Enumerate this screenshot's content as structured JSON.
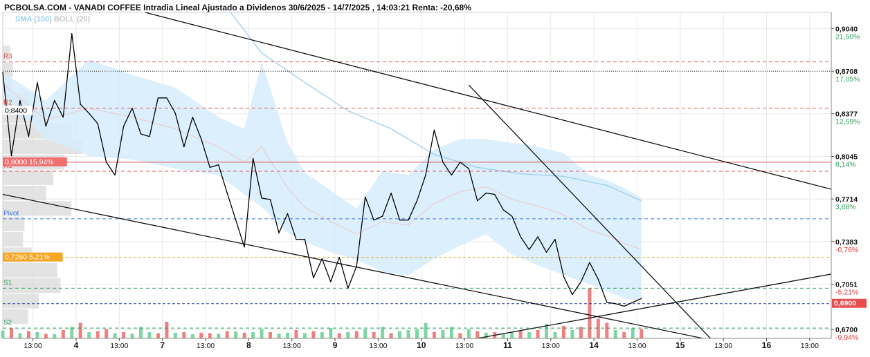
{
  "chart_data": {
    "type": "line",
    "title": "PCBOLSA.COM - VANADI COFFEE Intradia Lineal Ajustado a Dividenos 30/6/2025 - 14/7/2025 , 14:03:21 Renta: -20,68%",
    "legend": [
      "SMA (100)",
      "BOLL (20)"
    ],
    "legend_placement": "top-left",
    "grid": true,
    "ylim": [
      0.663,
      0.9165
    ],
    "y_ticks": [
      {
        "value": 0.904,
        "label": "0,9040",
        "pct": "21,50%",
        "pct_color": "#2e9e5b"
      },
      {
        "value": 0.8708,
        "label": "0,8708",
        "pct": "17,05%",
        "pct_color": "#2e9e5b"
      },
      {
        "value": 0.8377,
        "label": "0,8377",
        "pct": "12,59%",
        "pct_color": "#2e9e5b"
      },
      {
        "value": 0.8045,
        "label": "0,8045",
        "pct": "8,14%",
        "pct_color": "#2e9e5b"
      },
      {
        "value": 0.7714,
        "label": "0,7714",
        "pct": "3,68%",
        "pct_color": "#2e9e5b"
      },
      {
        "value": 0.7383,
        "label": "0,7383",
        "pct": "-0,76%",
        "pct_color": "#e23b3b"
      },
      {
        "value": 0.7051,
        "label": "0,7051",
        "pct": "-5,21%",
        "pct_color": "#e23b3b"
      },
      {
        "value": 0.67,
        "label": "0,6700",
        "pct": "-9,94%",
        "pct_color": "#e23b3b"
      }
    ],
    "x_range": [
      0,
      96
    ],
    "x_ticks": [
      {
        "x": 3.5,
        "label": "13:00",
        "bold": false
      },
      {
        "x": 8.5,
        "label": "4",
        "bold": true
      },
      {
        "x": 13.5,
        "label": "13:00",
        "bold": false
      },
      {
        "x": 18.5,
        "label": "7",
        "bold": true
      },
      {
        "x": 23.5,
        "label": "13:00",
        "bold": false
      },
      {
        "x": 28.5,
        "label": "8",
        "bold": true
      },
      {
        "x": 33.5,
        "label": "13:00",
        "bold": false
      },
      {
        "x": 38.5,
        "label": "9",
        "bold": true
      },
      {
        "x": 43.5,
        "label": "13:00",
        "bold": false
      },
      {
        "x": 48.5,
        "label": "10",
        "bold": true
      },
      {
        "x": 53.5,
        "label": "13:00",
        "bold": false
      },
      {
        "x": 58.5,
        "label": "11",
        "bold": true
      },
      {
        "x": 63.5,
        "label": "13:00",
        "bold": false
      },
      {
        "x": 68.5,
        "label": "14",
        "bold": true
      },
      {
        "x": 73.5,
        "label": "13:00",
        "bold": false
      },
      {
        "x": 78.5,
        "label": "15",
        "bold": true
      },
      {
        "x": 83.5,
        "label": "13:00",
        "bold": false
      },
      {
        "x": 88.5,
        "label": "16",
        "bold": true
      },
      {
        "x": 93.5,
        "label": "13:00",
        "bold": false
      }
    ],
    "pivot_levels": [
      {
        "label": "R3",
        "value": 0.878,
        "color": "#e05656"
      },
      {
        "label": "R2",
        "value": 0.842,
        "color": "#e05656"
      },
      {
        "label": "R1",
        "value": 0.793,
        "color": "#e05656"
      },
      {
        "label": "Pivot",
        "value": 0.756,
        "color": "#3b74d9"
      },
      {
        "label": "S1",
        "value": 0.702,
        "color": "#2e9e5b"
      },
      {
        "label": "S2",
        "value": 0.671,
        "color": "#2e9e5b"
      }
    ],
    "marker_lines": [
      {
        "value": 0.8708,
        "color": "#222222",
        "style": "dotted"
      },
      {
        "value": 0.8,
        "color": "#e05656",
        "style": "solid"
      },
      {
        "value": 0.726,
        "color": "#e8a020",
        "style": "dashed"
      },
      {
        "value": 0.69,
        "color": "#2a3f9a",
        "style": "dashed"
      }
    ],
    "price_labels": [
      {
        "text": "0,8400",
        "value": 0.84,
        "side": "left",
        "bg": "#ffffff",
        "color": "#000000"
      },
      {
        "text": "0,8000  15,94%",
        "value": 0.8,
        "side": "left",
        "bg": "#f07070",
        "color": "#ffffff"
      },
      {
        "text": "0,7260  5,21%",
        "value": 0.726,
        "side": "left",
        "bg": "#f5a623",
        "color": "#ffffff"
      },
      {
        "text": "0,6900",
        "value": 0.69,
        "side": "right",
        "bg": "#e84c4c",
        "color": "#ffffff"
      }
    ],
    "price_series": {
      "name": "",
      "x": [
        0,
        1,
        2,
        3,
        4,
        5,
        6,
        7,
        8,
        9,
        10,
        11,
        12,
        13,
        14,
        15,
        16,
        17,
        18,
        19,
        20,
        21,
        22,
        23,
        24,
        25,
        26,
        27,
        28,
        29,
        30,
        31,
        32,
        33,
        34,
        35,
        36,
        37,
        38,
        39,
        40,
        41,
        42,
        43,
        44,
        45,
        46,
        47,
        48,
        49,
        50,
        51,
        52,
        53,
        54,
        55,
        56,
        57,
        58,
        59,
        60,
        61,
        62,
        63,
        64,
        65,
        66,
        67,
        68,
        69,
        70,
        71,
        72,
        73,
        74
      ],
      "values": [
        0.87,
        0.805,
        0.848,
        0.82,
        0.862,
        0.828,
        0.848,
        0.835,
        0.9,
        0.845,
        0.838,
        0.83,
        0.8,
        0.79,
        0.828,
        0.842,
        0.822,
        0.82,
        0.85,
        0.85,
        0.838,
        0.812,
        0.835,
        0.818,
        0.796,
        0.798,
        0.776,
        0.755,
        0.734,
        0.803,
        0.772,
        0.771,
        0.745,
        0.76,
        0.74,
        0.74,
        0.71,
        0.725,
        0.707,
        0.726,
        0.702,
        0.719,
        0.773,
        0.755,
        0.758,
        0.776,
        0.755,
        0.755,
        0.77,
        0.79,
        0.825,
        0.8,
        0.79,
        0.8,
        0.795,
        0.77,
        0.776,
        0.775,
        0.763,
        0.758,
        0.742,
        0.732,
        0.742,
        0.73,
        0.74,
        0.711,
        0.697,
        0.707,
        0.722,
        0.709,
        0.691,
        0.69,
        0.688,
        0.691,
        0.694
      ]
    },
    "boll_upper": {
      "x": [
        0,
        5,
        10,
        15,
        20,
        25,
        28,
        30,
        33,
        35,
        38,
        41,
        44,
        47,
        50,
        53,
        56,
        59,
        62,
        65,
        68,
        70,
        72,
        74
      ],
      "values": [
        0.87,
        0.848,
        0.88,
        0.868,
        0.858,
        0.835,
        0.826,
        0.878,
        0.815,
        0.792,
        0.778,
        0.764,
        0.793,
        0.79,
        0.81,
        0.818,
        0.818,
        0.815,
        0.812,
        0.807,
        0.79,
        0.786,
        0.78,
        0.772
      ]
    },
    "boll_lower": {
      "x": [
        0,
        5,
        10,
        15,
        20,
        25,
        28,
        30,
        33,
        35,
        38,
        41,
        44,
        47,
        50,
        53,
        56,
        59,
        62,
        65,
        68,
        70,
        72,
        74
      ],
      "values": [
        0.852,
        0.818,
        0.805,
        0.802,
        0.795,
        0.79,
        0.775,
        0.765,
        0.745,
        0.738,
        0.73,
        0.724,
        0.715,
        0.712,
        0.725,
        0.735,
        0.744,
        0.728,
        0.72,
        0.712,
        0.705,
        0.7,
        0.694,
        0.692
      ]
    },
    "boll_mid": {
      "x": [
        0,
        5,
        10,
        15,
        20,
        25,
        28,
        30,
        33,
        35,
        38,
        41,
        44,
        47,
        50,
        53,
        56,
        59,
        62,
        65,
        68,
        70,
        72,
        74
      ],
      "values": [
        0.861,
        0.833,
        0.842,
        0.835,
        0.826,
        0.812,
        0.8,
        0.812,
        0.78,
        0.765,
        0.754,
        0.744,
        0.754,
        0.751,
        0.768,
        0.777,
        0.781,
        0.771,
        0.766,
        0.759,
        0.747,
        0.743,
        0.737,
        0.732
      ]
    },
    "sma_100": {
      "x": [
        26,
        30,
        35,
        40,
        45,
        50,
        55,
        60,
        65,
        70,
        74
      ],
      "values": [
        0.92,
        0.885,
        0.862,
        0.84,
        0.826,
        0.806,
        0.796,
        0.791,
        0.789,
        0.782,
        0.77
      ]
    },
    "trend_lines": [
      {
        "x1": 16.5,
        "y1": 0.9165,
        "x2": 96,
        "y2": 0.779
      },
      {
        "x1": 0,
        "y1": 0.775,
        "x2": 96,
        "y2": 0.6425
      },
      {
        "x1": 54,
        "y1": 0.86,
        "x2": 82,
        "y2": 0.663
      },
      {
        "x1": 55,
        "y1": 0.663,
        "x2": 96,
        "y2": 0.713
      }
    ],
    "volume": {
      "x": [
        0,
        1,
        2,
        3,
        4,
        5,
        6,
        7,
        8,
        9,
        10,
        11,
        12,
        13,
        14,
        15,
        16,
        17,
        18,
        19,
        20,
        21,
        22,
        23,
        24,
        25,
        26,
        27,
        28,
        29,
        30,
        31,
        32,
        33,
        34,
        35,
        36,
        37,
        38,
        39,
        40,
        41,
        42,
        43,
        44,
        45,
        46,
        47,
        48,
        49,
        50,
        51,
        52,
        53,
        54,
        55,
        56,
        57,
        58,
        59,
        60,
        61,
        62,
        63,
        64,
        65,
        66,
        67,
        68,
        69,
        70,
        71,
        72,
        73,
        74
      ],
      "values": [
        15,
        20,
        10,
        14,
        12,
        9,
        8,
        16,
        22,
        30,
        12,
        14,
        18,
        10,
        12,
        9,
        22,
        12,
        10,
        32,
        11,
        12,
        8,
        11,
        10,
        9,
        14,
        13,
        11,
        12,
        18,
        12,
        9,
        11,
        16,
        10,
        14,
        12,
        20,
        10,
        12,
        14,
        18,
        12,
        22,
        10,
        14,
        16,
        18,
        30,
        12,
        16,
        22,
        10,
        18,
        14,
        11,
        12,
        10,
        12,
        14,
        12,
        16,
        28,
        12,
        24,
        16,
        22,
        96,
        38,
        30,
        16,
        12,
        20,
        18
      ],
      "colors": [
        "#7ed6a5",
        "#f08080",
        "#7ed6a5",
        "#f08080",
        "#7ed6a5",
        "#f08080",
        "#7ed6a5",
        "#f08080",
        "#7ed6a5",
        "#f08080",
        "#7ed6a5",
        "#f08080",
        "#f08080",
        "#7ed6a5",
        "#f08080",
        "#7ed6a5",
        "#7ed6a5",
        "#7ed6a5",
        "#f08080",
        "#f08080",
        "#7ed6a5",
        "#f08080",
        "#7ed6a5",
        "#f08080",
        "#f08080",
        "#7ed6a5",
        "#f08080",
        "#7ed6a5",
        "#f08080",
        "#7ed6a5",
        "#7ed6a5",
        "#f08080",
        "#7ed6a5",
        "#7ed6a5",
        "#f08080",
        "#7ed6a5",
        "#f08080",
        "#7ed6a5",
        "#7ed6a5",
        "#f08080",
        "#7ed6a5",
        "#f08080",
        "#7ed6a5",
        "#f08080",
        "#7ed6a5",
        "#f08080",
        "#7ed6a5",
        "#7ed6a5",
        "#7ed6a5",
        "#7ed6a5",
        "#f08080",
        "#7ed6a5",
        "#7ed6a5",
        "#f08080",
        "#7ed6a5",
        "#f08080",
        "#7ed6a5",
        "#f08080",
        "#7ed6a5",
        "#7ed6a5",
        "#f08080",
        "#7ed6a5",
        "#f08080",
        "#7ed6a5",
        "#7ed6a5",
        "#f08080",
        "#7ed6a5",
        "#f08080",
        "#f08080",
        "#f08080",
        "#f08080",
        "#7ed6a5",
        "#f08080",
        "#7ed6a5",
        "#f08080"
      ]
    },
    "volume_profile": {
      "values": [
        0.885,
        0.872,
        0.86,
        0.848,
        0.836,
        0.824,
        0.812,
        0.8,
        0.788,
        0.776,
        0.764,
        0.752,
        0.74,
        0.728,
        0.716,
        0.704,
        0.692,
        0.68
      ],
      "weights": [
        10,
        14,
        12,
        38,
        55,
        95,
        110,
        85,
        70,
        60,
        95,
        30,
        28,
        40,
        75,
        80,
        50,
        35
      ]
    },
    "colors": {
      "price": "#000000",
      "boll_fill": "#d6ecfb",
      "sma": "#9fd0f0",
      "boll_mid": "#e6cfcf",
      "grid": "#e8e8e8",
      "profile": "#d9d9d9"
    }
  }
}
